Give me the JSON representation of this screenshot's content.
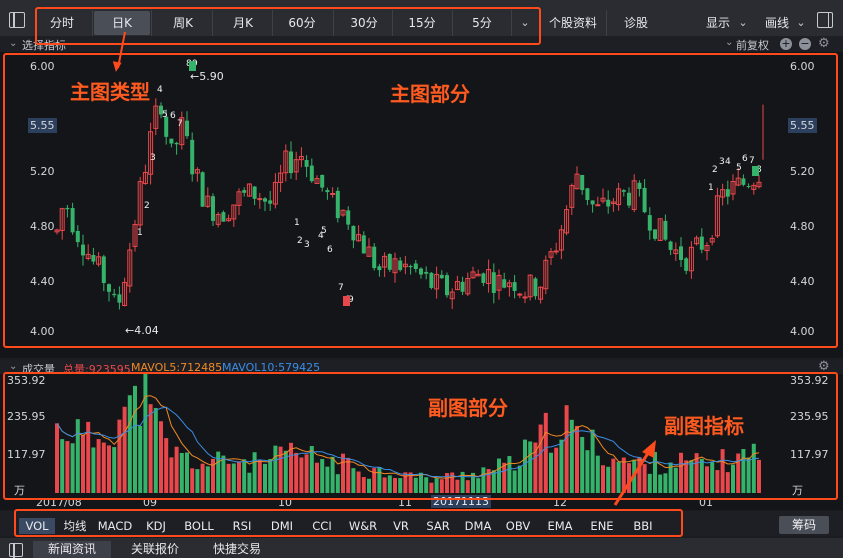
{
  "toolbar": {
    "tabs": [
      "分时",
      "日K",
      "周K",
      "月K",
      "60分",
      "30分",
      "15分",
      "5分"
    ],
    "active_tab": "日K",
    "right_buttons": [
      "个股资料",
      "诊股"
    ],
    "menus": [
      "显示",
      "画线"
    ]
  },
  "main_header": {
    "select_indicator": "选择指标",
    "adjust": "前复权"
  },
  "main_chart": {
    "y_ticks": [
      "6.00",
      "5.20",
      "4.80",
      "4.40",
      "4.00"
    ],
    "price_tag": "5.55",
    "high_label": "←5.90",
    "low_label": "←4.04",
    "seq_labels": [
      "1",
      "2",
      "3",
      "4",
      "5",
      "6",
      "7",
      "8",
      "9"
    ]
  },
  "sub_header": {
    "name": "成交量",
    "total": "总量:923595",
    "mavol5": "MAVOL5:712485",
    "mavol10": "MAVOL10:579425"
  },
  "sub_chart": {
    "y_ticks": [
      "353.92",
      "235.95",
      "117.97",
      "万"
    ],
    "x_ticks": [
      "2017/08",
      "09",
      "10",
      "11",
      "20171113",
      "12",
      "01"
    ]
  },
  "indicators": [
    "VOL",
    "均线",
    "MACD",
    "KDJ",
    "BOLL",
    "RSI",
    "DMI",
    "CCI",
    "W&R",
    "VR",
    "SAR",
    "DMA",
    "OBV",
    "EMA",
    "ENE",
    "BBI"
  ],
  "chip_button": "筹码",
  "bottom_tabs": [
    "新闻资讯",
    "关联报价",
    "快捷交易"
  ],
  "annotations": {
    "main_type": "主图类型",
    "main_part": "主图部分",
    "sub_part": "副图部分",
    "sub_indicator": "副图指标"
  },
  "colors": {
    "up": "#e8474b",
    "down": "#35b36b",
    "anno": "#ff4a1c",
    "mavol5": "#f08a24",
    "mavol10": "#3a8ee6"
  },
  "chart_data": {
    "type": "bar",
    "title": "成交量",
    "ylim": [
      0,
      353.92
    ],
    "ylabel": "万",
    "price_ylim": [
      4.0,
      6.0
    ]
  }
}
